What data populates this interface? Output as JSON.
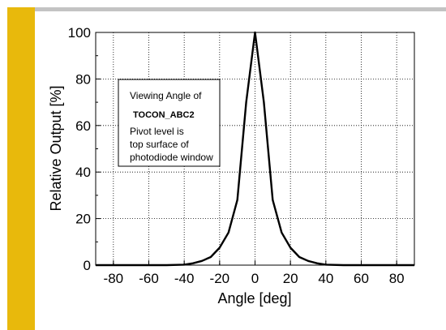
{
  "chart_data": {
    "type": "line",
    "title": "",
    "xlabel": "Angle [deg]",
    "ylabel": "Relative Output [%]",
    "xlim": [
      -90,
      90
    ],
    "ylim": [
      0,
      100
    ],
    "xticks": [
      -80,
      -60,
      -40,
      -20,
      0,
      20,
      40,
      60,
      80
    ],
    "yticks": [
      0,
      20,
      40,
      60,
      80,
      100
    ],
    "grid": true,
    "series": [
      {
        "name": "",
        "color": "#000000",
        "x": [
          -90,
          -80,
          -70,
          -60,
          -50,
          -40,
          -35,
          -30,
          -25,
          -20,
          -15,
          -10,
          -5,
          0,
          5,
          10,
          15,
          20,
          25,
          30,
          35,
          40,
          50,
          60,
          70,
          80,
          90
        ],
        "y": [
          0,
          0,
          0,
          0,
          0,
          0.2,
          0.8,
          1.8,
          3.5,
          7.5,
          14,
          28,
          70,
          100,
          70,
          28,
          14,
          7.5,
          3.5,
          1.8,
          0.8,
          0.2,
          0,
          0,
          0,
          0,
          0
        ]
      }
    ],
    "annotation": {
      "line1": "Viewing Angle of",
      "line2": "TOCON_ABC2",
      "line3": "Pivot level is",
      "line4": "top surface of",
      "line5": "photodiode window"
    }
  }
}
